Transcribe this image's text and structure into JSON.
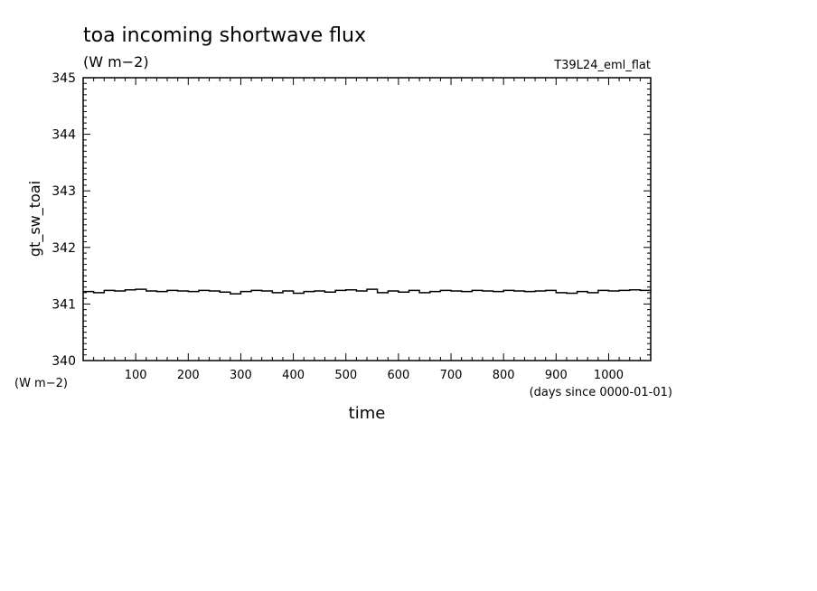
{
  "title": "toa incoming shortwave flux",
  "units": "(W m−2)",
  "run_label": "T39L24_eml_flat",
  "chart_data": {
    "type": "line",
    "xlabel": "time",
    "x_units": "(days since 0000-01-01)",
    "ylabel": "gt_sw_toai",
    "y_units": "(W m−2)",
    "xlim": [
      0,
      1080
    ],
    "ylim": [
      340,
      345
    ],
    "x_ticks": [
      100,
      200,
      300,
      400,
      500,
      600,
      700,
      800,
      900,
      1000
    ],
    "y_ticks": [
      340,
      341,
      342,
      343,
      344,
      345
    ],
    "grid": false,
    "series": [
      {
        "x": [
          0,
          20,
          40,
          60,
          80,
          100,
          120,
          140,
          160,
          180,
          200,
          220,
          240,
          260,
          280,
          300,
          320,
          340,
          360,
          380,
          400,
          420,
          440,
          460,
          480,
          500,
          520,
          540,
          560,
          580,
          600,
          620,
          640,
          660,
          680,
          700,
          720,
          740,
          760,
          780,
          800,
          820,
          840,
          860,
          880,
          900,
          920,
          940,
          960,
          980,
          1000,
          1020,
          1040,
          1060,
          1080
        ],
        "values": [
          341.22,
          341.2,
          341.24,
          341.23,
          341.25,
          341.26,
          341.23,
          341.22,
          341.24,
          341.23,
          341.22,
          341.24,
          341.23,
          341.21,
          341.18,
          341.22,
          341.24,
          341.23,
          341.2,
          341.23,
          341.19,
          341.22,
          341.23,
          341.21,
          341.24,
          341.25,
          341.23,
          341.26,
          341.2,
          341.23,
          341.21,
          341.24,
          341.2,
          341.22,
          341.24,
          341.23,
          341.22,
          341.24,
          341.23,
          341.22,
          341.24,
          341.23,
          341.22,
          341.23,
          341.24,
          341.2,
          341.19,
          341.22,
          341.2,
          341.24,
          341.23,
          341.24,
          341.25,
          341.24,
          341.23
        ]
      }
    ]
  }
}
